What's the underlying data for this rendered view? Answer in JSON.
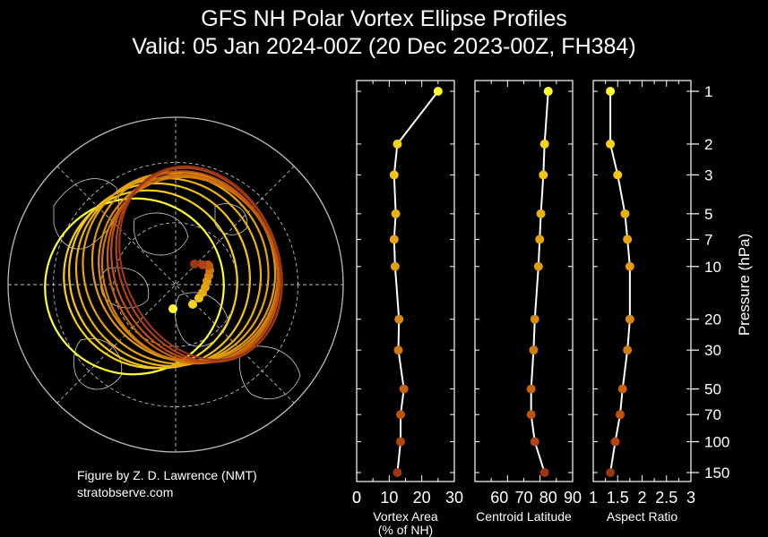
{
  "header": {
    "title_line1": "GFS NH Polar Vortex Ellipse Profiles",
    "title_line2": "Valid: 05 Jan 2024-00Z  (20 Dec 2023-00Z, FH384)"
  },
  "credit": {
    "line1": "Figure by Z. D. Lawrence (NMT)",
    "line2": "stratobserve.com"
  },
  "colors": {
    "background": "#000000",
    "line": "#ffffff",
    "graticule": "#bbbbbb",
    "coast": "#cccccc",
    "level_colors": [
      "#ffff33",
      "#f6d21f",
      "#f0c419",
      "#e8b012",
      "#e5a310",
      "#e29a10",
      "#d98a0e",
      "#cf7a0c",
      "#c8620a",
      "#c0520f",
      "#b04513",
      "#9c3515"
    ]
  },
  "chart_data": [
    {
      "type": "map",
      "name": "vortex-ellipses",
      "projection": "north-polar-stereographic",
      "ellipses_by_level_hPa": [
        1,
        2,
        3,
        5,
        7,
        10,
        20,
        30,
        50,
        70,
        100,
        150
      ],
      "ellipse_color_scale": "yellow (1 hPa) to dark red (150 hPa)"
    },
    {
      "type": "line",
      "name": "vortex-area",
      "xlabel": "Vortex Area\n(% of NH)",
      "xlim": [
        0,
        30
      ],
      "xticks": [
        "0",
        "10",
        "20",
        "30"
      ],
      "ylabel": "",
      "yscale": "log",
      "y": [
        1,
        2,
        3,
        5,
        7,
        10,
        20,
        30,
        50,
        70,
        100,
        150
      ],
      "x": [
        25,
        12.5,
        11.5,
        12,
        11.5,
        11.8,
        13,
        12.8,
        14.5,
        13.5,
        13.5,
        12.5
      ]
    },
    {
      "type": "line",
      "name": "centroid-latitude",
      "xlabel": "Centroid Latitude",
      "xlim": [
        50,
        90
      ],
      "xticks": [
        "60",
        "70",
        "80",
        "90"
      ],
      "ylabel": "",
      "yscale": "log",
      "y": [
        1,
        2,
        3,
        5,
        7,
        10,
        20,
        30,
        50,
        70,
        100,
        150
      ],
      "x": [
        80,
        78.5,
        78,
        77,
        76.5,
        76,
        74.5,
        74,
        73,
        73,
        74.5,
        78.5
      ]
    },
    {
      "type": "line",
      "name": "aspect-ratio",
      "xlabel": "Aspect Ratio",
      "xlim": [
        1,
        3
      ],
      "xticks": [
        "1",
        "1.5",
        "2",
        "2.5",
        "3"
      ],
      "ylabel": "Pressure (hPa)",
      "yscale": "log",
      "ylim": [
        150,
        1
      ],
      "yticks": [
        "1",
        "2",
        "3",
        "5",
        "7",
        "10",
        "20",
        "30",
        "50",
        "70",
        "100",
        "150"
      ],
      "y": [
        1,
        2,
        3,
        5,
        7,
        10,
        20,
        30,
        50,
        70,
        100,
        150
      ],
      "x": [
        1.35,
        1.35,
        1.5,
        1.65,
        1.7,
        1.75,
        1.75,
        1.7,
        1.6,
        1.55,
        1.45,
        1.35
      ]
    }
  ]
}
